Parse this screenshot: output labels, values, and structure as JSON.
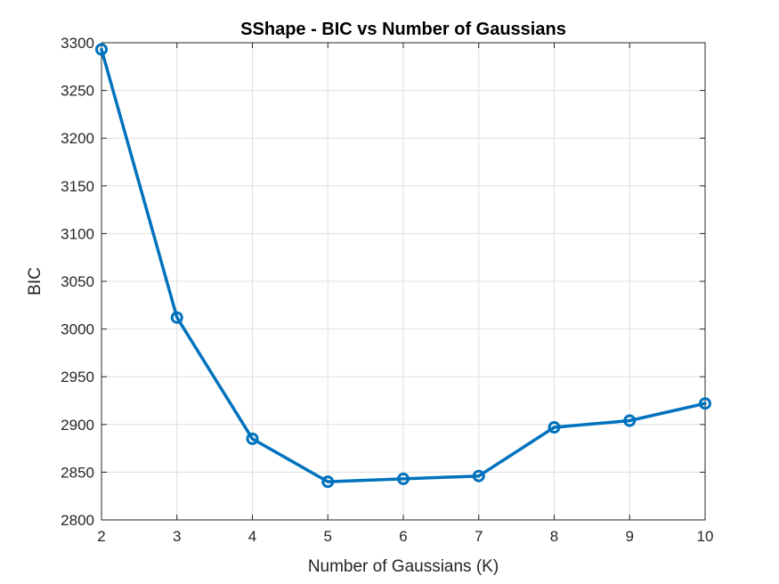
{
  "chart_data": {
    "type": "line",
    "title": "SShape - BIC vs Number of Gaussians",
    "xlabel": "Number of Gaussians (K)",
    "ylabel": "BIC",
    "xlim": [
      2,
      10
    ],
    "ylim": [
      2800,
      3300
    ],
    "x_ticks": [
      "2",
      "3",
      "4",
      "5",
      "6",
      "7",
      "8",
      "9",
      "10"
    ],
    "y_ticks": [
      "2800",
      "2850",
      "2900",
      "2950",
      "3000",
      "3050",
      "3100",
      "3150",
      "3200",
      "3250",
      "3300"
    ],
    "grid": true,
    "series": [
      {
        "x": [
          2,
          3,
          4,
          5,
          6,
          7,
          8,
          9,
          10
        ],
        "values": [
          3293,
          3012,
          2885,
          2840,
          2843,
          2846,
          2897,
          2904,
          2922
        ],
        "color": "#0072BD",
        "marker": "circle"
      }
    ]
  }
}
